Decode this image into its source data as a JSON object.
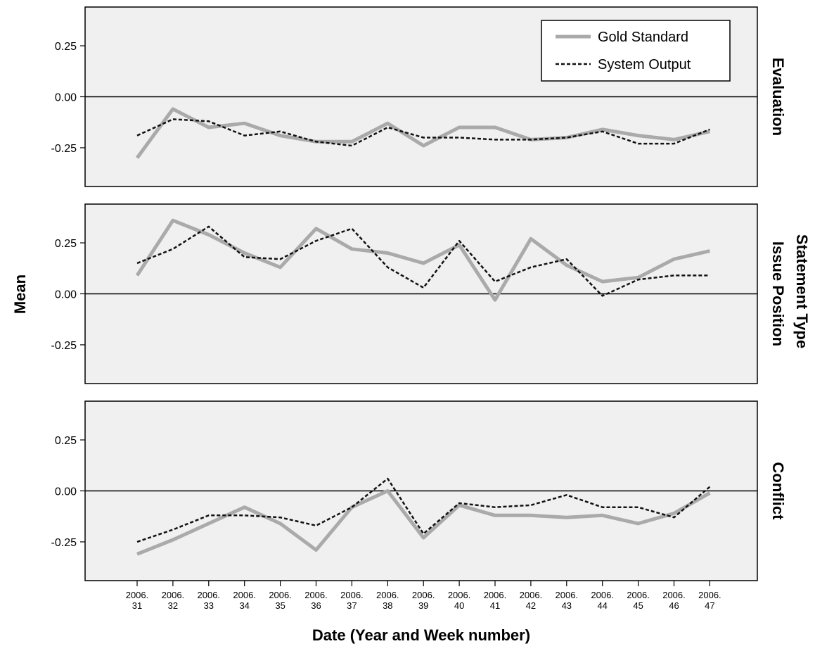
{
  "chart_data": {
    "type": "line",
    "ylabel": "Mean",
    "xlabel": "Date (Year and Week number)",
    "facet_label": "Statement Type",
    "x": [
      "2006.31",
      "2006.32",
      "2006.33",
      "2006.34",
      "2006.35",
      "2006.36",
      "2006.37",
      "2006.38",
      "2006.39",
      "2006.40",
      "2006.41",
      "2006.42",
      "2006.43",
      "2006.44",
      "2006.45",
      "2006.46",
      "2006.47"
    ],
    "x_tick_labels": [
      [
        "2006.",
        "31"
      ],
      [
        "2006.",
        "32"
      ],
      [
        "2006.",
        "33"
      ],
      [
        "2006.",
        "34"
      ],
      [
        "2006.",
        "35"
      ],
      [
        "2006.",
        "36"
      ],
      [
        "2006.",
        "37"
      ],
      [
        "2006.",
        "38"
      ],
      [
        "2006.",
        "39"
      ],
      [
        "2006.",
        "40"
      ],
      [
        "2006.",
        "41"
      ],
      [
        "2006.",
        "42"
      ],
      [
        "2006.",
        "43"
      ],
      [
        "2006.",
        "44"
      ],
      [
        "2006.",
        "45"
      ],
      [
        "2006.",
        "46"
      ],
      [
        "2006.",
        "47"
      ]
    ],
    "ylim": [
      -0.44,
      0.44
    ],
    "y_ticks": [
      -0.25,
      0.0,
      0.25
    ],
    "y_tick_labels": [
      "-0.25",
      "0.00",
      "0.25"
    ],
    "legend": {
      "placement": "top-right",
      "entries": [
        "Gold Standard",
        "System Output"
      ]
    },
    "colors": {
      "gold": "#aaaaaa",
      "system": "#111111",
      "panel_bg": "#f0f0f0"
    },
    "panels": [
      {
        "title": "Evaluation",
        "series": [
          {
            "name": "Gold Standard",
            "values": [
              -0.3,
              -0.06,
              -0.15,
              -0.13,
              -0.19,
              -0.22,
              -0.22,
              -0.13,
              -0.24,
              -0.15,
              -0.15,
              -0.21,
              -0.2,
              -0.16,
              -0.19,
              -0.21,
              -0.17
            ]
          },
          {
            "name": "System Output",
            "values": [
              -0.19,
              -0.11,
              -0.12,
              -0.19,
              -0.17,
              -0.22,
              -0.24,
              -0.15,
              -0.2,
              -0.2,
              -0.21,
              -0.21,
              -0.2,
              -0.17,
              -0.23,
              -0.23,
              -0.16
            ]
          }
        ]
      },
      {
        "title": "Issue Position",
        "series": [
          {
            "name": "Gold Standard",
            "values": [
              0.09,
              0.36,
              0.29,
              0.2,
              0.13,
              0.32,
              0.22,
              0.2,
              0.15,
              0.24,
              -0.03,
              0.27,
              0.14,
              0.06,
              0.08,
              0.17,
              0.21
            ]
          },
          {
            "name": "System Output",
            "values": [
              0.15,
              0.22,
              0.33,
              0.18,
              0.17,
              0.26,
              0.32,
              0.13,
              0.03,
              0.26,
              0.06,
              0.13,
              0.17,
              -0.01,
              0.07,
              0.09,
              0.09
            ]
          }
        ]
      },
      {
        "title": "Conflict",
        "series": [
          {
            "name": "Gold Standard",
            "values": [
              -0.31,
              -0.24,
              -0.16,
              -0.08,
              -0.16,
              -0.29,
              -0.08,
              0.0,
              -0.23,
              -0.07,
              -0.12,
              -0.12,
              -0.13,
              -0.12,
              -0.16,
              -0.11,
              -0.01
            ]
          },
          {
            "name": "System Output",
            "values": [
              -0.25,
              -0.19,
              -0.12,
              -0.12,
              -0.13,
              -0.17,
              -0.08,
              0.06,
              -0.21,
              -0.06,
              -0.08,
              -0.07,
              -0.02,
              -0.08,
              -0.08,
              -0.13,
              0.02
            ]
          }
        ]
      }
    ]
  }
}
